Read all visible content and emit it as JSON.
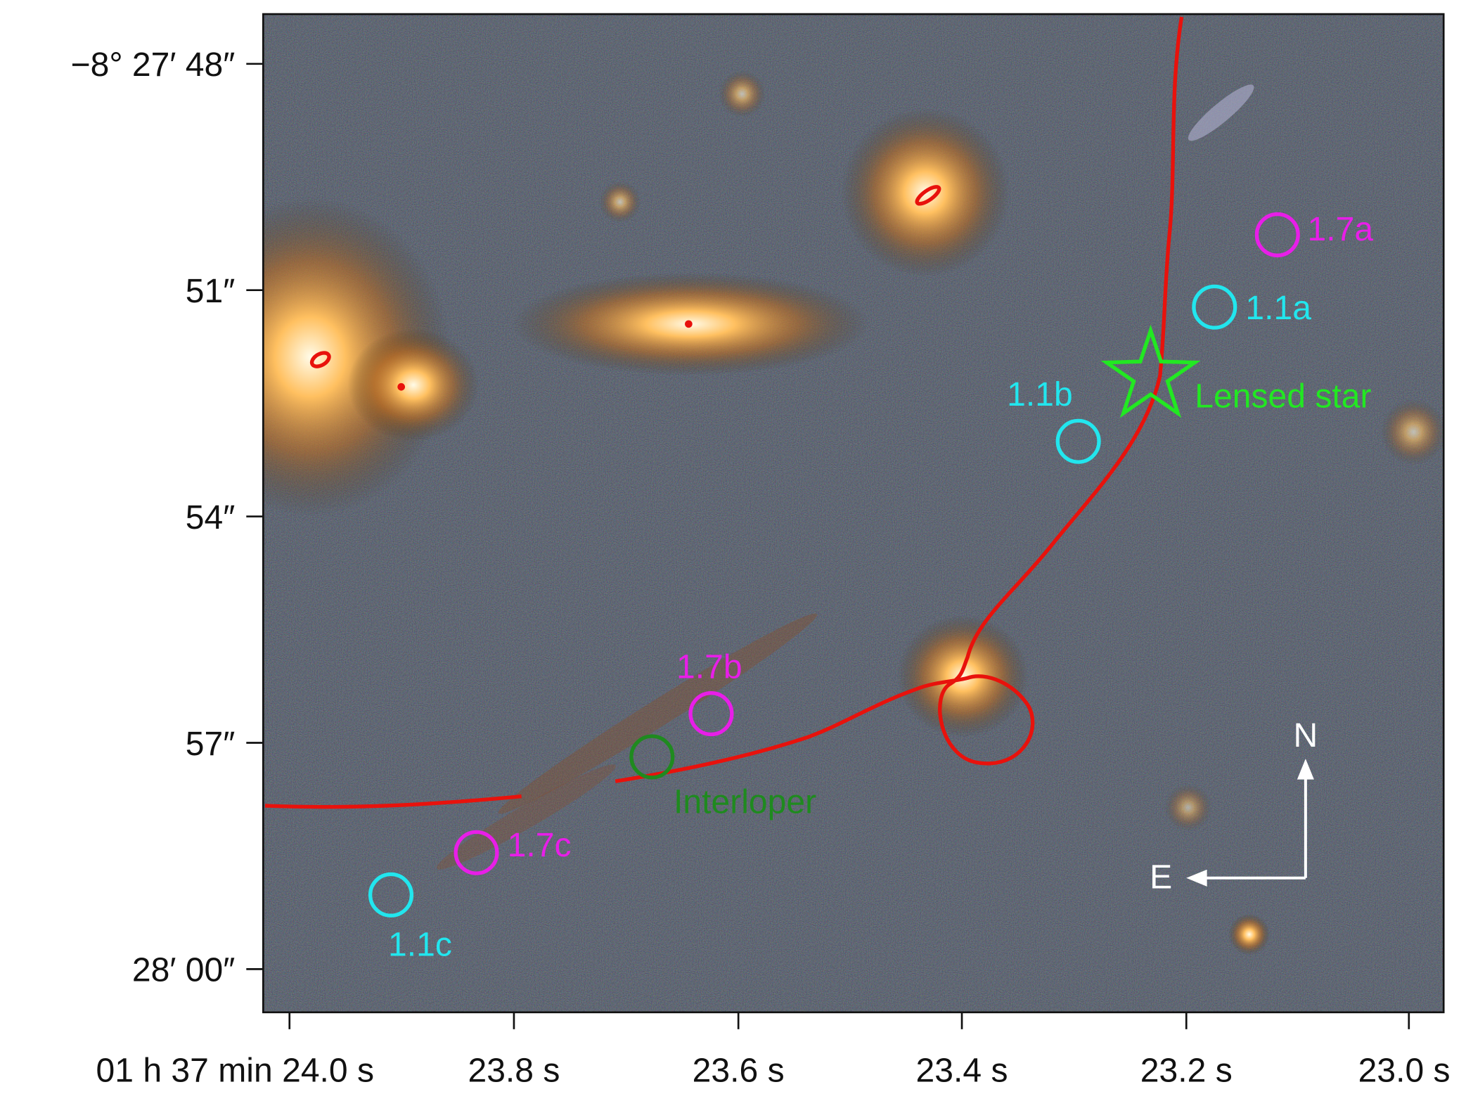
{
  "axes": {
    "y_ticks": [
      "−8° 27′ 48″",
      "51″",
      "54″",
      "57″",
      "28′ 00″"
    ],
    "x_ticks": [
      "01 h 37 min 24.0 s",
      "23.8 s",
      "23.6 s",
      "23.4 s",
      "23.2 s",
      "23.0 s"
    ]
  },
  "annotations": [
    "1.7a",
    "1.1a",
    "1.1b",
    "Lensed star",
    "1.7b",
    "Interloper",
    "1.7c",
    "1.1c"
  ],
  "compass": {
    "north": "N",
    "east": "E"
  }
}
